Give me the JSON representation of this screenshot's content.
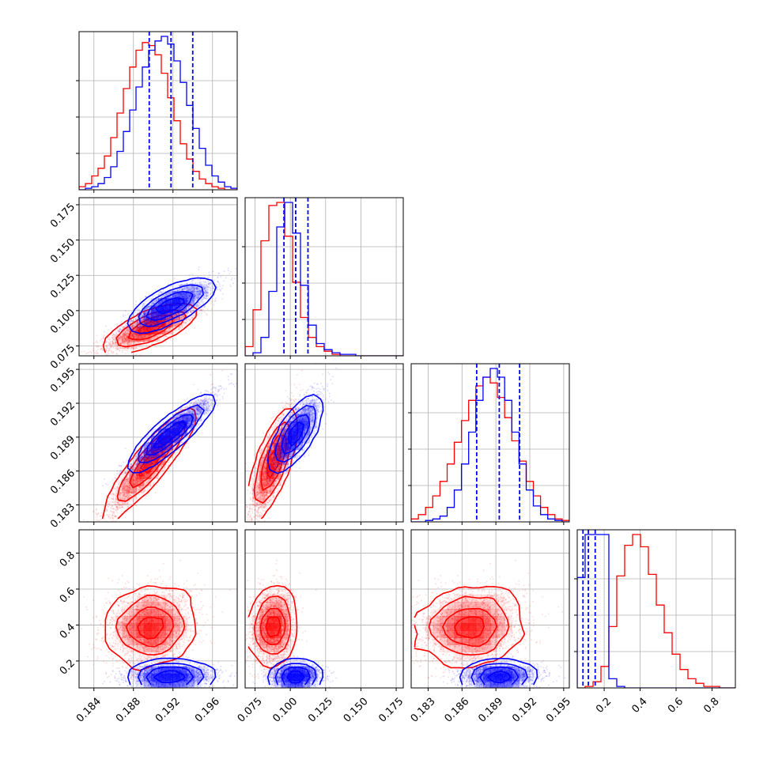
{
  "colors": {
    "red": "#ff0000",
    "blue": "#0000ff",
    "grid": "#b0b0b0",
    "frame": "#000000"
  },
  "chart_data": {
    "type": "corner",
    "title": "",
    "grid": true,
    "params": [
      {
        "range": [
          0.1825,
          0.1985
        ],
        "ticks": [
          0.184,
          0.188,
          0.192,
          0.196
        ],
        "tick_labels": [
          "0.184",
          "0.188",
          "0.192",
          "0.196"
        ]
      },
      {
        "range": [
          0.068,
          0.18
        ],
        "ticks": [
          0.075,
          0.1,
          0.125,
          0.15,
          0.175
        ],
        "tick_labels": [
          "0.075",
          "0.100",
          "0.125",
          "0.150",
          "0.175"
        ]
      },
      {
        "range": [
          0.1815,
          0.1955
        ],
        "ticks": [
          0.183,
          0.186,
          0.189,
          0.192,
          0.195
        ],
        "tick_labels": [
          "0.183",
          "0.186",
          "0.189",
          "0.192",
          "0.195"
        ]
      },
      {
        "range": [
          0.05,
          0.93
        ],
        "ticks": [
          0.2,
          0.4,
          0.6,
          0.8
        ],
        "tick_labels": [
          "0.2",
          "0.4",
          "0.6",
          "0.8"
        ]
      }
    ],
    "series": [
      {
        "color": "red",
        "mean": [
          0.1898,
          0.088,
          0.1868,
          0.39
        ],
        "sd": [
          0.0022,
          0.0072,
          0.0023,
          0.105
        ],
        "corr": [
          [
            1,
            0.8,
            0.94,
            0.1
          ],
          [
            0.8,
            1,
            0.8,
            0.1
          ],
          [
            0.94,
            0.8,
            1,
            0.1
          ],
          [
            0.1,
            0.1,
            0.1,
            1
          ]
        ],
        "hist": [
          {
            "edges": [
              0.1825,
              0.1985
            ],
            "counts": [
              2,
              4,
              9,
              14,
              22,
              34,
              50,
              66,
              80,
              91,
              96,
              94,
              88,
              76,
              60,
              45,
              30,
              20,
              12,
              7,
              4,
              2,
              1,
              0,
              0
            ]
          },
          {
            "edges": [
              0.068,
              0.18
            ],
            "counts": [
              6,
              30,
              75,
              98,
              100,
              78,
              48,
              25,
              12,
              6,
              3,
              1,
              0,
              0,
              0,
              0,
              0,
              0,
              0,
              0
            ]
          },
          {
            "edges": [
              0.1815,
              0.1955
            ],
            "counts": [
              2,
              5,
              10,
              18,
              28,
              40,
              55,
              70,
              84,
              94,
              100,
              96,
              86,
              72,
              56,
              42,
              28,
              18,
              10,
              5,
              2,
              1
            ]
          },
          {
            "edges": [
              0.05,
              0.93
            ],
            "counts": [
              0,
              1,
              4,
              14,
              40,
              73,
              93,
              100,
              92,
              74,
              54,
              36,
              22,
              12,
              6,
              3,
              1,
              1,
              0,
              0
            ]
          }
        ]
      },
      {
        "color": "blue",
        "mean": [
          0.1918,
          0.1038,
          0.1893,
          0.118
        ],
        "sd": [
          0.0021,
          0.0085,
          0.0016,
          0.03
        ],
        "corr": [
          [
            1,
            0.8,
            0.94,
            0.05
          ],
          [
            0.8,
            1,
            0.8,
            0.05
          ],
          [
            0.94,
            0.8,
            1,
            0.05
          ],
          [
            0.05,
            0.05,
            0.05,
            1
          ]
        ],
        "quantiles": [
          [
            0.1896,
            0.1918,
            0.194
          ],
          [
            0.0955,
            0.1038,
            0.1125
          ],
          [
            0.1873,
            0.1893,
            0.1911
          ],
          [
            0.082,
            0.112,
            0.15
          ]
        ],
        "hist": [
          {
            "edges": [
              0.1825,
              0.1985
            ],
            "counts": [
              0,
              1,
              2,
              4,
              8,
              15,
              25,
              38,
              52,
              67,
              80,
              91,
              97,
              100,
              95,
              84,
              70,
              55,
              40,
              27,
              16,
              9,
              5,
              2,
              1
            ]
          },
          {
            "edges": [
              0.068,
              0.18
            ],
            "counts": [
              0,
              2,
              12,
              42,
              84,
              100,
              80,
              46,
              20,
              8,
              4,
              2,
              1,
              1,
              0,
              0,
              0,
              0,
              0,
              0
            ]
          },
          {
            "edges": [
              0.1815,
              0.1955
            ],
            "counts": [
              0,
              0,
              1,
              2,
              4,
              10,
              22,
              40,
              62,
              84,
              100,
              106,
              100,
              84,
              62,
              40,
              22,
              11,
              5,
              2,
              1,
              0
            ]
          },
          {
            "edges": [
              0.05,
              0.93
            ],
            "counts": [
              72,
              100,
              100,
              100,
              6,
              1,
              0,
              0,
              0,
              0,
              0,
              0,
              0,
              0,
              0,
              0,
              0,
              0,
              0,
              0
            ]
          }
        ]
      }
    ]
  }
}
